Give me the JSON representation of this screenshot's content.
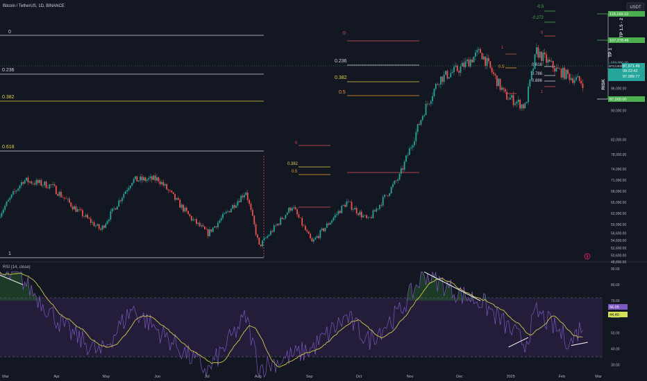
{
  "header": {
    "symbol": "Bitcoin / TetherUS, 1D, BINANCE",
    "currency": "USDT"
  },
  "indicator": {
    "label": "RSI (14, close)",
    "rsi_value": "56.05",
    "ma_value": "44.40"
  },
  "price_tags": {
    "last_symbol": "BTCUSDT",
    "last_price": "97,971.49",
    "countdown": "09:22:42",
    "current_line": "97,389.77",
    "tp2": "118,169.19",
    "tp1": "107,278.46",
    "stop": "87,000.00"
  },
  "trade_labels": {
    "tp2": "TP 1.5 - 2",
    "tp1": "TP 1",
    "risk": "RISK"
  },
  "y_axis_ticks": [
    "116,000.00",
    "103,000.00",
    "96,000.00",
    "90,000.00",
    "82,000.00",
    "78,000.00",
    "74,000.00",
    "71,000.00",
    "68,000.00",
    "65,000.00",
    "62,000.00",
    "59,000.00",
    "56,600.00",
    "54,600.00",
    "52,600.00",
    "50,600.00",
    "48,800.00"
  ],
  "rsi_axis_ticks": [
    "90.00",
    "80.00",
    "70.00",
    "60.00",
    "50.00",
    "40.00",
    "30.00"
  ],
  "x_axis_ticks": [
    "Mar",
    "Apr",
    "May",
    "Jun",
    "Jul",
    "Aug",
    "Sep",
    "Oct",
    "Nov",
    "Dec",
    "2025",
    "Feb",
    "Mar"
  ],
  "fib_big": [
    "0",
    "0.236",
    "0.382",
    "0.618",
    "1"
  ],
  "fib_mid": [
    "0",
    "0.382",
    "0.5",
    "1"
  ],
  "fib_oct": [
    "0",
    "0.236",
    "0.382",
    "0.5"
  ],
  "fib_dec": [
    "1",
    "0.5",
    "0"
  ],
  "fib_jan": [
    "-0.5",
    "-0.272",
    "0",
    "0.618",
    "0.786",
    "0.886",
    "1"
  ],
  "colors": {
    "bg": "#131722",
    "up": "#26a69a",
    "down": "#ef5350",
    "fib_white": "#d1d4dc",
    "fib_yellow": "#e0d24a",
    "fib_orange": "#f0a030",
    "fib_red": "#e0505a",
    "rsi_line": "#7e57c2",
    "rsi_ma": "#d4c84a",
    "tag_green": "#4caf50"
  },
  "chart_data": {
    "type": "candlestick",
    "x_range": [
      "2024-03-01",
      "2025-03-01"
    ],
    "price_ylim": [
      48800,
      120000
    ],
    "rsi_ylim": [
      25,
      90
    ],
    "rsi_levels": [
      70,
      30
    ],
    "series": [
      {
        "name": "close",
        "x": [
          "2024-03-01",
          "2024-03-15",
          "2024-04-01",
          "2024-04-15",
          "2024-05-01",
          "2024-05-20",
          "2024-06-05",
          "2024-06-25",
          "2024-07-05",
          "2024-07-28",
          "2024-08-05",
          "2024-08-25",
          "2024-09-06",
          "2024-09-27",
          "2024-10-10",
          "2024-10-29",
          "2024-11-13",
          "2024-11-22",
          "2024-12-05",
          "2024-12-17",
          "2025-01-01",
          "2025-01-13",
          "2025-01-20",
          "2025-02-01",
          "2025-02-17"
        ],
        "values": [
          62000,
          71000,
          69500,
          63500,
          57500,
          71000,
          71300,
          60500,
          56500,
          68000,
          53000,
          64000,
          54000,
          65000,
          60000,
          72000,
          90000,
          98500,
          101500,
          106000,
          94000,
          91000,
          106000,
          101000,
          97500
        ]
      },
      {
        "name": "rsi",
        "x": [
          "2024-03-01",
          "2024-03-12",
          "2024-04-10",
          "2024-05-01",
          "2024-05-20",
          "2024-06-25",
          "2024-07-05",
          "2024-07-28",
          "2024-08-05",
          "2024-09-06",
          "2024-09-27",
          "2024-10-10",
          "2024-10-29",
          "2024-11-13",
          "2024-12-05",
          "2024-12-17",
          "2025-01-13",
          "2025-01-20",
          "2025-02-10",
          "2025-02-17"
        ],
        "values": [
          85,
          86,
          52,
          37,
          65,
          34,
          26,
          60,
          28,
          40,
          60,
          45,
          63,
          87,
          74,
          70,
          43,
          63,
          44,
          56
        ]
      }
    ],
    "divergences": [
      {
        "from": [
          "2024-03-01",
          86
        ],
        "to": [
          "2024-03-15",
          80
        ]
      },
      {
        "from": [
          "2024-11-13",
          88
        ],
        "to": [
          "2024-12-17",
          70
        ]
      },
      {
        "from": [
          "2025-01-03",
          41
        ],
        "to": [
          "2025-01-15",
          47
        ]
      },
      {
        "from": [
          "2025-02-10",
          42
        ],
        "to": [
          "2025-02-20",
          44
        ]
      }
    ]
  }
}
